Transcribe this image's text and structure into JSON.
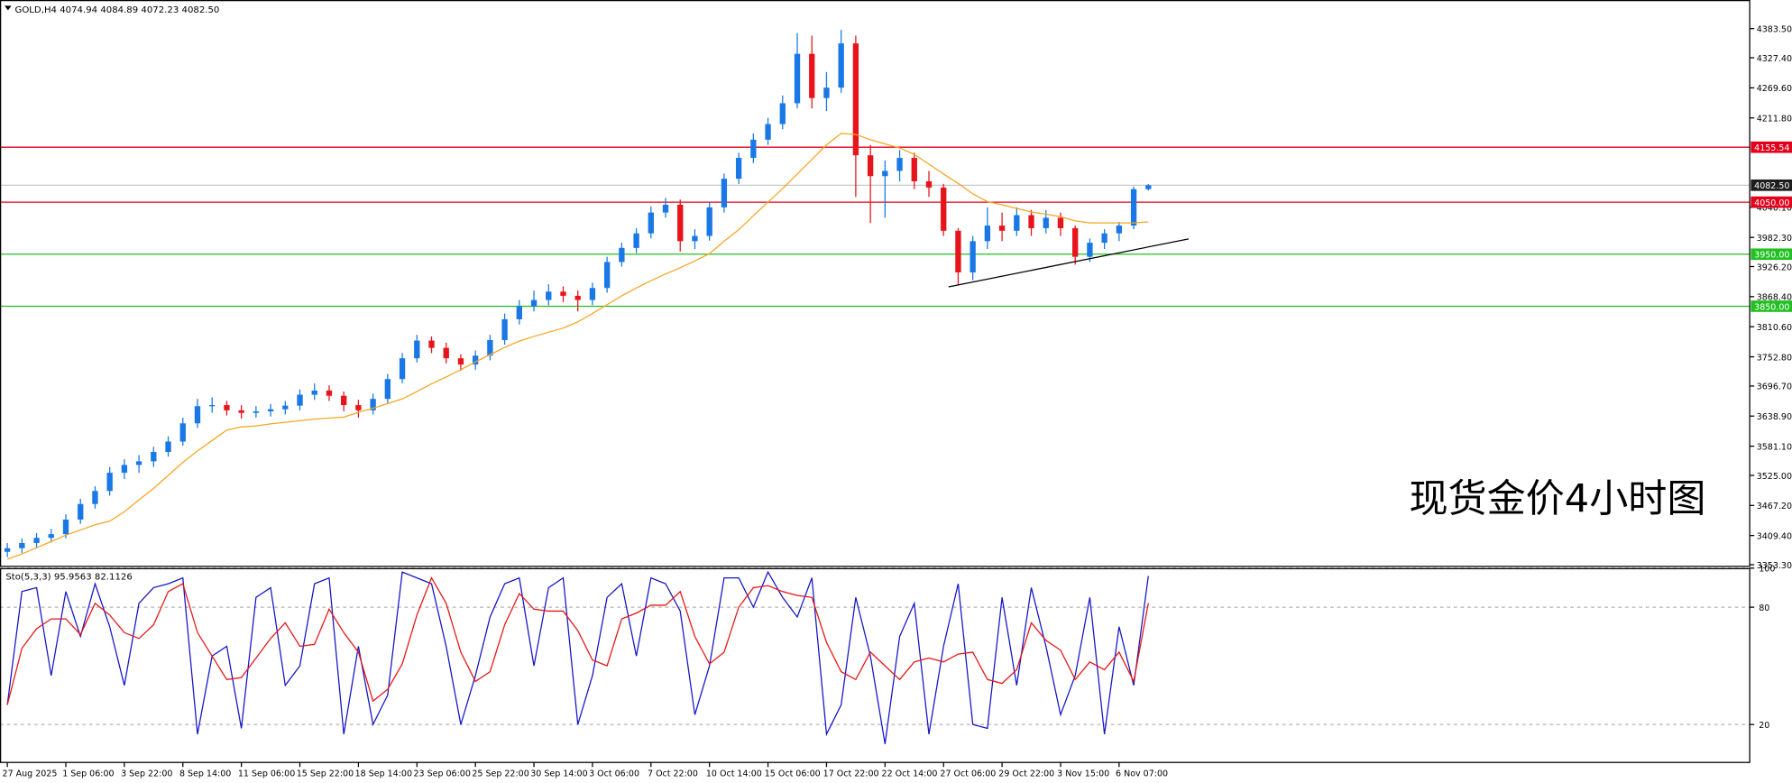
{
  "chart_data": [
    {
      "type": "candlestick",
      "symbol": "GOLD,H4",
      "last_bar_labels": [
        "4074.94",
        "4084.89",
        "4072.23",
        "4082.50"
      ],
      "annotation": "现货金价4小时图",
      "categories": [
        "27 Aug 2025",
        null,
        null,
        null,
        "1 Sep 06:00",
        null,
        null,
        null,
        "3 Sep 22:00",
        null,
        null,
        null,
        "8 Sep 14:00",
        null,
        null,
        null,
        "11 Sep 06:00",
        null,
        null,
        null,
        "15 Sep 22:00",
        null,
        null,
        null,
        "18 Sep 14:00",
        null,
        null,
        null,
        "23 Sep 06:00",
        null,
        null,
        null,
        "25 Sep 22:00",
        null,
        null,
        null,
        "30 Sep 14:00",
        null,
        null,
        null,
        "3 Oct 06:00",
        null,
        null,
        null,
        "7 Oct 22:00",
        null,
        null,
        null,
        "10 Oct 14:00",
        null,
        null,
        null,
        "15 Oct 06:00",
        null,
        null,
        null,
        "17 Oct 22:00",
        null,
        null,
        null,
        "22 Oct 14:00",
        null,
        null,
        null,
        "27 Oct 06:00",
        null,
        null,
        null,
        "29 Oct 22:00",
        null,
        null,
        null,
        "3 Nov 15:00",
        null,
        null,
        null,
        "6 Nov 07:00",
        null,
        null
      ],
      "open": [
        3378,
        3385,
        3395,
        3405,
        3412,
        3440,
        3470,
        3495,
        3530,
        3545,
        3552,
        3570,
        3590,
        3625,
        3658,
        3660,
        3650,
        3645,
        3648,
        3652,
        3659,
        3680,
        3688,
        3678,
        3660,
        3650,
        3672,
        3710,
        3750,
        3784,
        3770,
        3750,
        3738,
        3755,
        3785,
        3825,
        3850,
        3862,
        3878,
        3870,
        3862,
        3885,
        3935,
        3962,
        3990,
        4030,
        4045,
        3975,
        3985,
        4040,
        4095,
        4135,
        4170,
        4200,
        4240,
        4335,
        4250,
        4270,
        4355,
        4140,
        4100,
        4110,
        4135,
        4090,
        4078,
        3995,
        3915,
        3975,
        4005,
        3995,
        4025,
        4000,
        4020,
        4000,
        3945,
        3972,
        3990,
        4005,
        4074.94
      ],
      "high": [
        3395,
        3404,
        3414,
        3422,
        3450,
        3480,
        3504,
        3541,
        3556,
        3564,
        3580,
        3600,
        3636,
        3672,
        3675,
        3668,
        3660,
        3658,
        3662,
        3668,
        3690,
        3702,
        3698,
        3686,
        3670,
        3682,
        3720,
        3760,
        3795,
        3792,
        3780,
        3758,
        3765,
        3795,
        3836,
        3862,
        3880,
        3892,
        3888,
        3880,
        3895,
        3945,
        3972,
        4000,
        4042,
        4058,
        4055,
        3998,
        4050,
        4105,
        4145,
        4182,
        4212,
        4255,
        4375,
        4370,
        4300,
        4381,
        4370,
        4160,
        4130,
        4150,
        4145,
        4110,
        4085,
        4000,
        3985,
        4040,
        4030,
        4040,
        4035,
        4035,
        4030,
        4005,
        3980,
        3998,
        4012,
        4080,
        4084.89
      ],
      "low": [
        3368,
        3376,
        3386,
        3396,
        3404,
        3432,
        3461,
        3486,
        3518,
        3530,
        3541,
        3561,
        3582,
        3616,
        3645,
        3640,
        3634,
        3636,
        3638,
        3642,
        3650,
        3670,
        3668,
        3648,
        3636,
        3642,
        3664,
        3702,
        3742,
        3760,
        3740,
        3726,
        3728,
        3746,
        3776,
        3815,
        3840,
        3852,
        3858,
        3840,
        3852,
        3876,
        3926,
        3952,
        3980,
        4020,
        3955,
        3960,
        3976,
        4030,
        4085,
        4125,
        4160,
        4190,
        4230,
        4230,
        4225,
        4260,
        4060,
        4010,
        4020,
        4090,
        4075,
        4060,
        3985,
        3890,
        3900,
        3960,
        3975,
        3985,
        3985,
        3990,
        3985,
        3930,
        3935,
        3960,
        3975,
        3998,
        4072.23
      ],
      "close": [
        3385,
        3395,
        3405,
        3412,
        3440,
        3470,
        3495,
        3530,
        3545,
        3552,
        3570,
        3590,
        3625,
        3658,
        3660,
        3650,
        3645,
        3648,
        3652,
        3659,
        3680,
        3688,
        3678,
        3660,
        3650,
        3672,
        3710,
        3750,
        3784,
        3770,
        3750,
        3738,
        3755,
        3785,
        3825,
        3850,
        3862,
        3878,
        3870,
        3862,
        3885,
        3935,
        3962,
        3990,
        4030,
        4045,
        3975,
        3985,
        4040,
        4095,
        4135,
        4170,
        4200,
        4240,
        4335,
        4250,
        4270,
        4355,
        4140,
        4100,
        4110,
        4135,
        4090,
        4078,
        3995,
        3915,
        3975,
        4005,
        3995,
        4025,
        4000,
        4020,
        4000,
        3945,
        3972,
        3990,
        4005,
        4074.94,
        4082.5
      ],
      "up_color": "#1a78e6",
      "down_color": "#e8141c",
      "series": [
        {
          "color": "#f5a623",
          "values": [
            3364,
            3374,
            3386,
            3398,
            3410,
            3420,
            3430,
            3437,
            3455,
            3478,
            3500,
            3525,
            3550,
            3572,
            3592,
            3612,
            3618,
            3620,
            3624,
            3627,
            3630,
            3633,
            3635,
            3637,
            3646,
            3654,
            3663,
            3672,
            3686,
            3701,
            3714,
            3728,
            3743,
            3757,
            3771,
            3783,
            3792,
            3800,
            3808,
            3820,
            3836,
            3853,
            3870,
            3885,
            3899,
            3912,
            3924,
            3937,
            3951,
            3975,
            3997,
            4024,
            4050,
            4076,
            4104,
            4132,
            4160,
            4182,
            4180,
            4170,
            4162,
            4154,
            4142,
            4123,
            4104,
            4086,
            4066,
            4051,
            4045,
            4038,
            4031,
            4027,
            4022,
            4014,
            4010,
            4010,
            4010,
            4010,
            4012
          ]
        }
      ],
      "ylim": [
        3349,
        4438.4
      ],
      "yticks": [
        {
          "value": 4383.5,
          "label": "4383.50"
        },
        {
          "value": 4327.4,
          "label": "4327.40"
        },
        {
          "value": 4269.6,
          "label": "4269.60"
        },
        {
          "value": 4211.8,
          "label": "4211.80"
        },
        {
          "value": 4040.1,
          "label": "4040.10"
        },
        {
          "value": 3982.3,
          "label": "3982.30"
        },
        {
          "value": 3926.2,
          "label": "3926.20"
        },
        {
          "value": 3868.4,
          "label": "3868.40"
        },
        {
          "value": 3810.6,
          "label": "3810.60"
        },
        {
          "value": 3752.8,
          "label": "3752.80"
        },
        {
          "value": 3696.7,
          "label": "3696.70"
        },
        {
          "value": 3638.9,
          "label": "3638.90"
        },
        {
          "value": 3581.1,
          "label": "3581.10"
        },
        {
          "value": 3525,
          "label": "3525.00"
        },
        {
          "value": 3467.2,
          "label": "3467.20"
        },
        {
          "value": 3409.4,
          "label": "3409.40"
        },
        {
          "value": 3353.3,
          "label": "3353.30"
        }
      ],
      "levels": [
        {
          "value": 4155.54,
          "color": "#e3001b"
        },
        {
          "value": 4082.5,
          "label": "4082.50",
          "color": "#c8c8c8",
          "box": "#1e1e1e"
        },
        {
          "value": 4050,
          "label": "4050.00",
          "color": "#e3001b"
        },
        {
          "value": 3950,
          "label": "3950.00",
          "color": "#22c022"
        },
        {
          "value": 3850,
          "label": "3850.00",
          "color": "#22c022"
        }
      ]
    },
    {
      "type": "line",
      "title": "Sto(5,3,3)",
      "series": [
        {
          "color": "#1414c8",
          "values": [
            30,
            88,
            90,
            45,
            88,
            65,
            92,
            70,
            40,
            82,
            90,
            92,
            95,
            15,
            55,
            60,
            18,
            85,
            90,
            40,
            50,
            92,
            95,
            15,
            60,
            20,
            35,
            98,
            95,
            92,
            60,
            20,
            45,
            75,
            92,
            95,
            50,
            90,
            95,
            20,
            45,
            85,
            92,
            55,
            95,
            92,
            78,
            25,
            50,
            95,
            95,
            80,
            98,
            85,
            75,
            95,
            15,
            30,
            85,
            55,
            10,
            65,
            82,
            15,
            60,
            92,
            20,
            18,
            85,
            40,
            90,
            60,
            25,
            45,
            85,
            15,
            70,
            40,
            95.9563
          ]
        },
        {
          "color": "#e81414",
          "values": [
            30,
            59,
            69,
            74,
            74,
            66,
            82,
            76,
            67,
            64,
            71,
            88,
            92,
            67,
            55,
            43,
            44,
            54,
            64,
            72,
            60,
            61,
            79,
            67,
            57,
            32,
            38,
            51,
            76,
            95,
            82,
            57,
            42,
            47,
            71,
            87,
            79,
            78,
            78,
            68,
            53,
            50,
            74,
            77,
            81,
            81,
            88,
            65,
            51,
            57,
            80,
            90,
            91,
            88,
            86,
            85,
            62,
            47,
            43,
            57,
            50,
            43,
            52,
            54,
            52,
            56,
            57,
            43,
            41,
            48,
            72,
            63,
            58,
            43,
            52,
            48,
            57,
            42,
            82.1126
          ]
        }
      ],
      "ylim": [
        0,
        100
      ],
      "yticks": [
        100,
        80,
        20
      ],
      "grid": true
    }
  ]
}
